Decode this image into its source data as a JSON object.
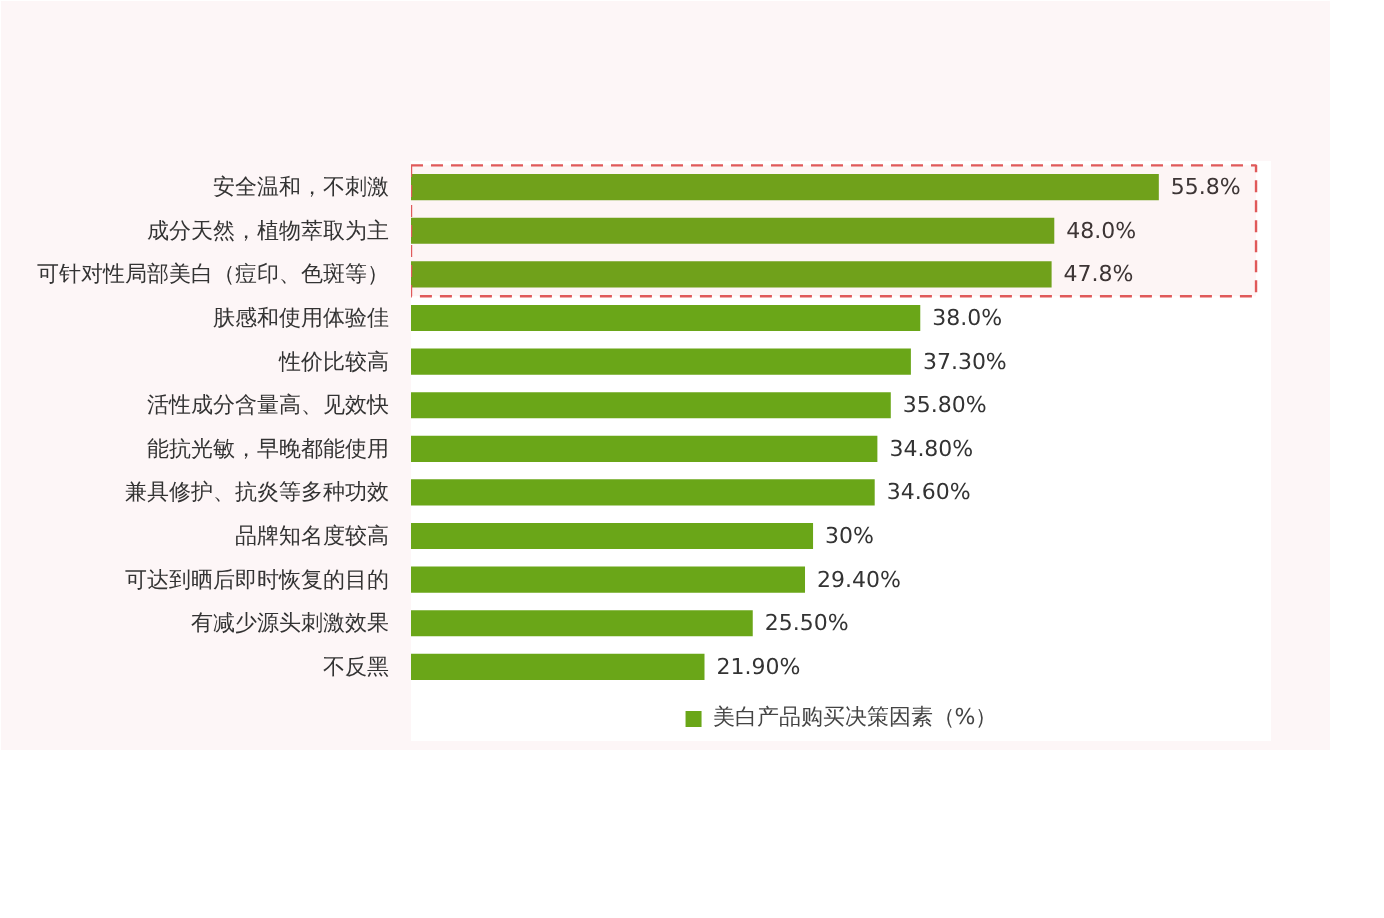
{
  "chart_data": {
    "type": "bar",
    "orientation": "horizontal",
    "categories": [
      "安全温和，不刺激",
      "成分天然，植物萃取为主",
      "可针对性局部美白（痘印、色斑等）",
      "肤感和使用体验佳",
      "性价比较高",
      "活性成分含量高、见效快",
      "能抗光敏，早晚都能使用",
      "兼具修护、抗炎等多种功效",
      "品牌知名度较高",
      "可达到晒后即时恢复的目的",
      "有减少源头刺激效果",
      "不反黑"
    ],
    "series": [
      {
        "name": "美白产品购买决策因素（%）",
        "color": "#6aa618",
        "values": [
          55.8,
          48.0,
          47.8,
          38.0,
          37.3,
          35.8,
          34.8,
          34.6,
          30,
          29.4,
          25.5,
          21.9
        ],
        "value_labels": [
          "55.8%",
          "48.0%",
          "47.8%",
          "38.0%",
          "37.30%",
          "35.80%",
          "34.80%",
          "34.60%",
          "30%",
          "29.40%",
          "25.50%",
          "21.90%"
        ]
      }
    ],
    "bands": [
      {
        "axis": "y",
        "from": "安全温和，不刺激",
        "to": "可针对性局部美白（痘印、色斑等）",
        "color": "#e05a5a"
      }
    ],
    "legend": "bottom"
  }
}
